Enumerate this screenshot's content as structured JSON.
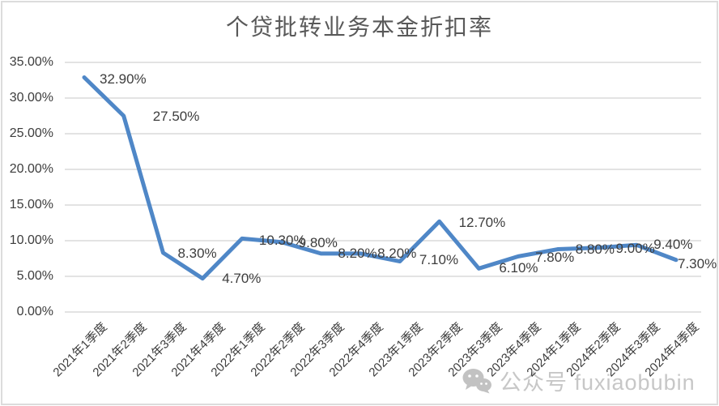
{
  "watermark": {
    "icon": "wechat-icon",
    "text": "公众号 fuxiaobubin"
  },
  "chart_data": {
    "type": "line",
    "title": "个贷批转业务本金折扣率",
    "categories": [
      "2021年1季度",
      "2021年2季度",
      "2021年3季度",
      "2021年4季度",
      "2022年1季度",
      "2022年2季度",
      "2022年3季度",
      "2022年4季度",
      "2023年1季度",
      "2023年2季度",
      "2023年3季度",
      "2023年4季度",
      "2024年1季度",
      "2024年2季度",
      "2024年3季度",
      "2024年4季度"
    ],
    "values": [
      32.9,
      27.5,
      8.3,
      4.7,
      10.3,
      9.8,
      8.2,
      8.2,
      7.1,
      12.7,
      6.1,
      7.8,
      8.8,
      9.0,
      9.4,
      7.3
    ],
    "data_labels": [
      "32.90%",
      "27.50%",
      "8.30%",
      "4.70%",
      "10.30%",
      "9.80%",
      "8.20%",
      "8.20%",
      "7.10%",
      "12.70%",
      "6.10%",
      "7.80%",
      "8.80%",
      "9.00%",
      "9.40%",
      "7.30%"
    ],
    "y_tick_labels": [
      "35.00%",
      "30.00%",
      "25.00%",
      "20.00%",
      "15.00%",
      "10.00%",
      "5.00%",
      "0.00%"
    ],
    "ylim": [
      0,
      35
    ],
    "xlabel": "",
    "ylabel": "",
    "grid": true,
    "legend_position": "none",
    "colors": {
      "line": "#4F87C7",
      "gridline": "#DADADA",
      "axis_text": "#3D3D3D",
      "title_text": "#595959",
      "frame_border": "#DCDCDC",
      "watermark": "#C7C7C7"
    }
  }
}
